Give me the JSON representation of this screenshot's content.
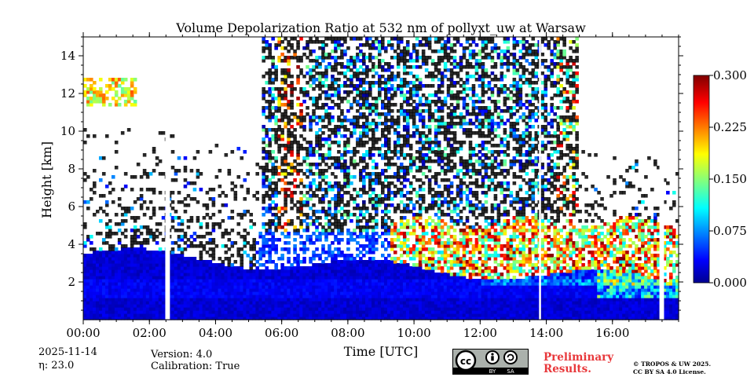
{
  "chart_data": {
    "type": "heatmap",
    "title": "Volume Depolarization Ratio at 532 nm of pollyxt_uw at Warsaw",
    "xlabel": "Time [UTC]",
    "ylabel": "Height [km]",
    "x_range_hours": [
      0,
      18
    ],
    "ylim": [
      0,
      15
    ],
    "x_ticks": [
      {
        "value": 0,
        "label": "00:00"
      },
      {
        "value": 2,
        "label": "02:00"
      },
      {
        "value": 4,
        "label": "04:00"
      },
      {
        "value": 6,
        "label": "06:00"
      },
      {
        "value": 8,
        "label": "08:00"
      },
      {
        "value": 10,
        "label": "10:00"
      },
      {
        "value": 12,
        "label": "12:00"
      },
      {
        "value": 14,
        "label": "14:00"
      },
      {
        "value": 16,
        "label": "16:00"
      }
    ],
    "y_ticks": [
      {
        "value": 2,
        "label": "2"
      },
      {
        "value": 4,
        "label": "4"
      },
      {
        "value": 6,
        "label": "6"
      },
      {
        "value": 8,
        "label": "8"
      },
      {
        "value": 10,
        "label": "10"
      },
      {
        "value": 12,
        "label": "12"
      },
      {
        "value": 14,
        "label": "14"
      }
    ],
    "colorbar": {
      "colormap": "jet",
      "range": [
        0,
        0.3
      ],
      "ticks": [
        {
          "value": 0.0,
          "label": "0.000"
        },
        {
          "value": 0.075,
          "label": "0.075"
        },
        {
          "value": 0.15,
          "label": "0.150"
        },
        {
          "value": 0.225,
          "label": "0.225"
        },
        {
          "value": 0.3,
          "label": "0.300"
        }
      ]
    },
    "data_gaps_hours": [
      [
        2.48,
        2.62
      ],
      [
        13.78,
        13.84
      ],
      [
        17.42,
        17.56
      ]
    ],
    "features": [
      {
        "kind": "boundary-layer",
        "start_hour": 0,
        "end_hour": 18,
        "height_km": [
          0,
          3.5
        ],
        "depol_range": [
          0.0,
          0.06
        ]
      },
      {
        "kind": "elevated-aerosol",
        "start_hour": 9.5,
        "end_hour": 18,
        "height_km": [
          1.8,
          5.5
        ],
        "depol_range": [
          0.1,
          0.3
        ]
      },
      {
        "kind": "cirrus",
        "start_hour": 0,
        "end_hour": 1.6,
        "height_km": [
          11.5,
          12.7
        ],
        "depol_range": [
          0.15,
          0.25
        ]
      },
      {
        "kind": "noisy-daytime-signal",
        "start_hour": 5.4,
        "end_hour": 15.0,
        "height_km": [
          5,
          15
        ],
        "depol_range": [
          0.0,
          0.3
        ]
      }
    ]
  },
  "meta": {
    "date": "2025-11-14",
    "eta": "η: 23.0",
    "version": "Version: 4.0",
    "calibration": "Calibration: True"
  },
  "license_badge": {
    "by": "BY",
    "sa": "SA"
  },
  "preliminary": "Preliminary",
  "preliminary_line2": "Results.",
  "license_line1": "© TROPOS & UW 2025.",
  "license_line2": "CC BY SA 4.0 License."
}
